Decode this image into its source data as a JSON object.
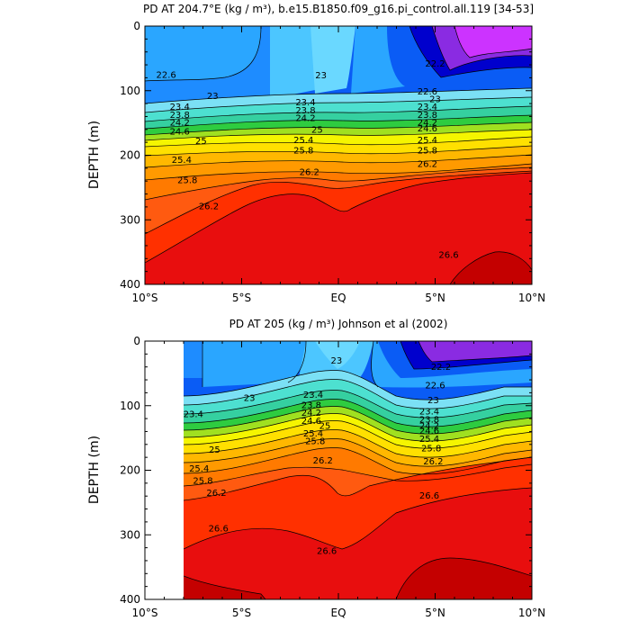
{
  "chart_data": [
    {
      "type": "contour",
      "title": "PD AT 204.7°E (kg / m³), b.e15.B1850.f09_g16.pi_control.all.119 [34-53]",
      "ylabel": "DEPTH (m)",
      "xticks": [
        "10°S",
        "5°S",
        "EQ",
        "5°N",
        "10°N"
      ],
      "xlim": [
        -10,
        10
      ],
      "ylim": [
        0,
        400
      ],
      "yticks": [
        "0",
        "100",
        "200",
        "300",
        "400"
      ],
      "contour_levels": [
        22.2,
        22.6,
        23,
        23.4,
        23.8,
        24.2,
        24.6,
        25,
        25.4,
        25.8,
        26.2,
        26.6
      ],
      "contour_labels": [
        {
          "text": "22.6",
          "lat": -8.9,
          "depth": 75
        },
        {
          "text": "23",
          "lat": -6.5,
          "depth": 108
        },
        {
          "text": "23.4",
          "lat": -8.2,
          "depth": 125
        },
        {
          "text": "23.8",
          "lat": -8.2,
          "depth": 137
        },
        {
          "text": "24.2",
          "lat": -8.2,
          "depth": 149
        },
        {
          "text": "24.6",
          "lat": -8.2,
          "depth": 163
        },
        {
          "text": "25",
          "lat": -7.1,
          "depth": 178
        },
        {
          "text": "25.4",
          "lat": -8.1,
          "depth": 207
        },
        {
          "text": "25.8",
          "lat": -7.8,
          "depth": 238
        },
        {
          "text": "26.2",
          "lat": -6.7,
          "depth": 279
        },
        {
          "text": "23",
          "lat": -0.9,
          "depth": 76
        },
        {
          "text": "23.4",
          "lat": -1.7,
          "depth": 118
        },
        {
          "text": "23.8",
          "lat": -1.7,
          "depth": 130
        },
        {
          "text": "24.2",
          "lat": -1.7,
          "depth": 142
        },
        {
          "text": "25",
          "lat": -1.1,
          "depth": 160
        },
        {
          "text": "25.4",
          "lat": -1.8,
          "depth": 176
        },
        {
          "text": "25.8",
          "lat": -1.8,
          "depth": 192
        },
        {
          "text": "26.2",
          "lat": -1.5,
          "depth": 226
        },
        {
          "text": "22.2",
          "lat": 5.0,
          "depth": 58
        },
        {
          "text": "22.6",
          "lat": 4.6,
          "depth": 101
        },
        {
          "text": "23",
          "lat": 5.0,
          "depth": 113
        },
        {
          "text": "23.4",
          "lat": 4.6,
          "depth": 125
        },
        {
          "text": "23.8",
          "lat": 4.6,
          "depth": 137
        },
        {
          "text": "24.2",
          "lat": 4.6,
          "depth": 149
        },
        {
          "text": "24.6",
          "lat": 4.6,
          "depth": 158
        },
        {
          "text": "25.4",
          "lat": 4.6,
          "depth": 176
        },
        {
          "text": "25.8",
          "lat": 4.6,
          "depth": 192
        },
        {
          "text": "26.2",
          "lat": 4.6,
          "depth": 213
        },
        {
          "text": "26.6",
          "lat": 5.7,
          "depth": 354
        }
      ]
    },
    {
      "type": "contour",
      "title": "PD AT 205 (kg / m³) Johnson et al (2002)",
      "ylabel": "DEPTH (m)",
      "xticks": [
        "10°S",
        "5°S",
        "EQ",
        "5°N",
        "10°N"
      ],
      "xlim": [
        -10,
        10
      ],
      "ylim": [
        0,
        400
      ],
      "yticks": [
        "0",
        "100",
        "200",
        "300",
        "400"
      ],
      "data_start_lat": -8,
      "contour_levels": [
        22.2,
        22.6,
        23,
        23.4,
        23.8,
        24.2,
        24.6,
        25,
        25.4,
        25.8,
        26.2,
        26.6
      ],
      "contour_labels": [
        {
          "text": "23",
          "lat": -4.6,
          "depth": 88
        },
        {
          "text": "23.4",
          "lat": -7.5,
          "depth": 113
        },
        {
          "text": "25",
          "lat": -6.4,
          "depth": 168
        },
        {
          "text": "25.4",
          "lat": -7.2,
          "depth": 197
        },
        {
          "text": "25.8",
          "lat": -7.0,
          "depth": 216
        },
        {
          "text": "26.2",
          "lat": -6.3,
          "depth": 235
        },
        {
          "text": "26.6",
          "lat": -6.2,
          "depth": 290
        },
        {
          "text": "26.6",
          "lat": -0.6,
          "depth": 325
        },
        {
          "text": "23",
          "lat": -0.1,
          "depth": 30
        },
        {
          "text": "23.4",
          "lat": -1.3,
          "depth": 83
        },
        {
          "text": "23.8",
          "lat": -1.4,
          "depth": 99
        },
        {
          "text": "24.2",
          "lat": -1.4,
          "depth": 111
        },
        {
          "text": "24.6",
          "lat": -1.4,
          "depth": 123
        },
        {
          "text": "25",
          "lat": -0.7,
          "depth": 131
        },
        {
          "text": "25.4",
          "lat": -1.3,
          "depth": 143
        },
        {
          "text": "25.8",
          "lat": -1.2,
          "depth": 155
        },
        {
          "text": "26.2",
          "lat": -0.8,
          "depth": 185
        },
        {
          "text": "22.2",
          "lat": 5.3,
          "depth": 40
        },
        {
          "text": "22.6",
          "lat": 5.0,
          "depth": 68
        },
        {
          "text": "23",
          "lat": 4.9,
          "depth": 91
        },
        {
          "text": "23.4",
          "lat": 4.7,
          "depth": 109
        },
        {
          "text": "23.8",
          "lat": 4.7,
          "depth": 121
        },
        {
          "text": "24.2",
          "lat": 4.7,
          "depth": 131
        },
        {
          "text": "24.6",
          "lat": 4.7,
          "depth": 139
        },
        {
          "text": "25.4",
          "lat": 4.7,
          "depth": 151
        },
        {
          "text": "25.8",
          "lat": 4.8,
          "depth": 166
        },
        {
          "text": "26.2",
          "lat": 4.9,
          "depth": 186
        },
        {
          "text": "26.6",
          "lat": 4.7,
          "depth": 239
        }
      ]
    }
  ]
}
